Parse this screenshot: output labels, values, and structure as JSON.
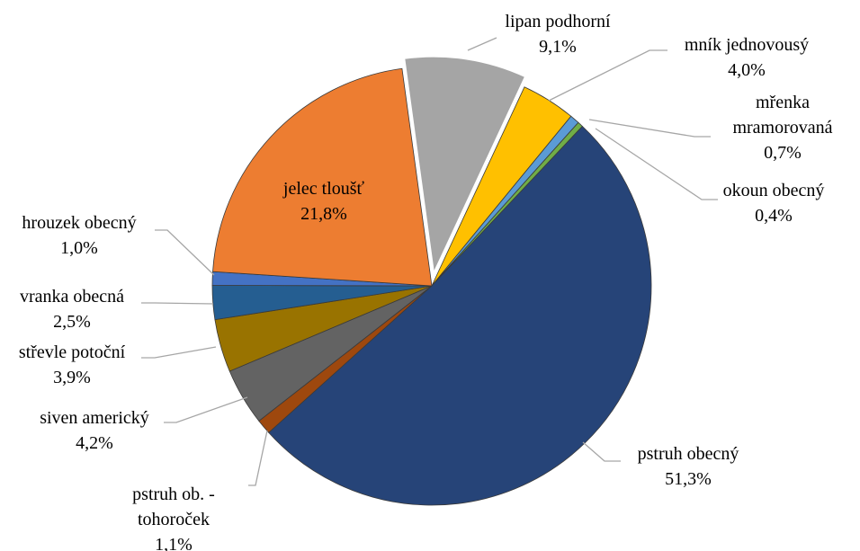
{
  "chart_data": {
    "type": "pie",
    "categories": [
      "lipan podhorní",
      "mník jednovousý",
      "mřenka mramorovaná",
      "okoun obecný",
      "pstruh obecný",
      "pstruh ob. - tohoroček",
      "siven americký",
      "střevle potoční",
      "vranka obecná",
      "hrouzek obecný",
      "jelec tloušť"
    ],
    "values": [
      9.1,
      4.0,
      0.7,
      0.4,
      51.3,
      1.1,
      4.2,
      3.9,
      2.5,
      1.0,
      21.8
    ],
    "value_labels": [
      "9,1%",
      "4,0%",
      "0,7%",
      "0,4%",
      "51,3%",
      "1,1%",
      "4,2%",
      "3,9%",
      "2,5%",
      "1,0%",
      "21,8%"
    ],
    "colors": [
      "#a5a5a5",
      "#ffc000",
      "#5b9bd5",
      "#70ad47",
      "#264478",
      "#9e480e",
      "#636363",
      "#997300",
      "#255e91",
      "#4472c4",
      "#ed7d31"
    ],
    "exploded": [
      "lipan podhorní"
    ]
  }
}
